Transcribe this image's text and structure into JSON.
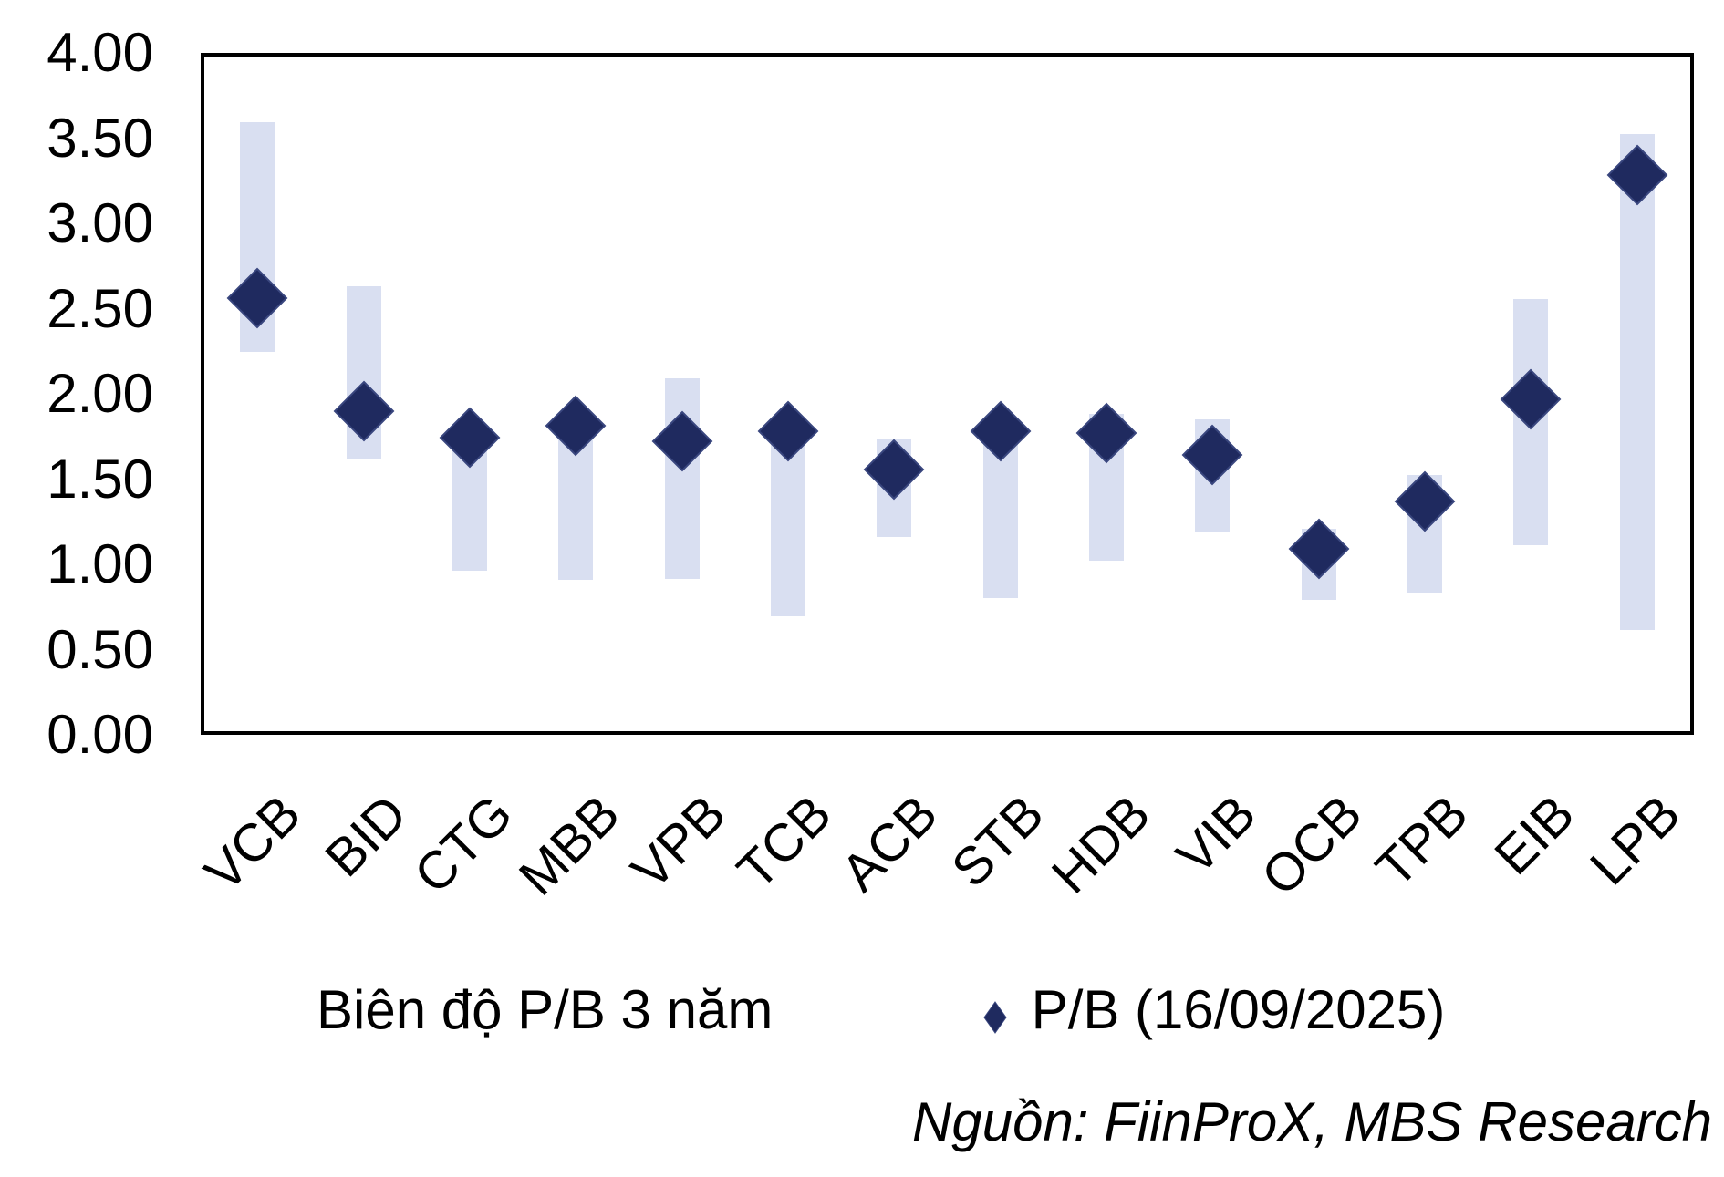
{
  "chart_data": {
    "type": "bar",
    "subtype": "floating range bars (3-year P/B band) with diamond markers (current P/B)",
    "title": "",
    "xlabel": "",
    "ylabel": "",
    "categories": [
      "VCB",
      "BID",
      "CTG",
      "MBB",
      "VPB",
      "TCB",
      "ACB",
      "STB",
      "HDB",
      "VIB",
      "OCB",
      "TPB",
      "EIB",
      "LPB"
    ],
    "series": [
      {
        "name": "Biên độ P/B 3 năm",
        "type": "range",
        "low": [
          2.25,
          1.61,
          0.95,
          0.9,
          0.9,
          0.68,
          1.15,
          0.79,
          1.01,
          1.18,
          0.78,
          0.82,
          1.1,
          0.6
        ],
        "high": [
          3.61,
          2.64,
          1.8,
          1.85,
          2.09,
          1.82,
          1.73,
          1.82,
          1.88,
          1.85,
          1.2,
          1.52,
          2.56,
          3.54
        ]
      },
      {
        "name": "P/B (16/09/2025)",
        "type": "marker",
        "values": [
          2.57,
          1.9,
          1.74,
          1.81,
          1.72,
          1.78,
          1.55,
          1.78,
          1.77,
          1.64,
          1.08,
          1.36,
          1.97,
          3.3
        ]
      }
    ],
    "ylim": [
      0,
      4
    ],
    "ytick_step": 0.5,
    "ytick_labels": [
      "4.00",
      "3.50",
      "3.00",
      "2.50",
      "2.00",
      "1.50",
      "1.00",
      "0.50",
      "0.00"
    ],
    "grid": false,
    "legend_position": "bottom"
  },
  "legend": {
    "items": [
      {
        "label": "Biên độ P/B 3 năm",
        "marker": "none"
      },
      {
        "label": "P/B (16/09/2025)",
        "marker": "diamond-icon"
      }
    ]
  },
  "footer": {
    "source_note": "Nguồn: FiinProX, MBS Research"
  },
  "colors": {
    "range_bar": "#D9DFF1",
    "marker_fill": "#1F2A5F",
    "marker_stroke": "#39467E",
    "axis_frame": "#000000",
    "text": "#000000"
  }
}
